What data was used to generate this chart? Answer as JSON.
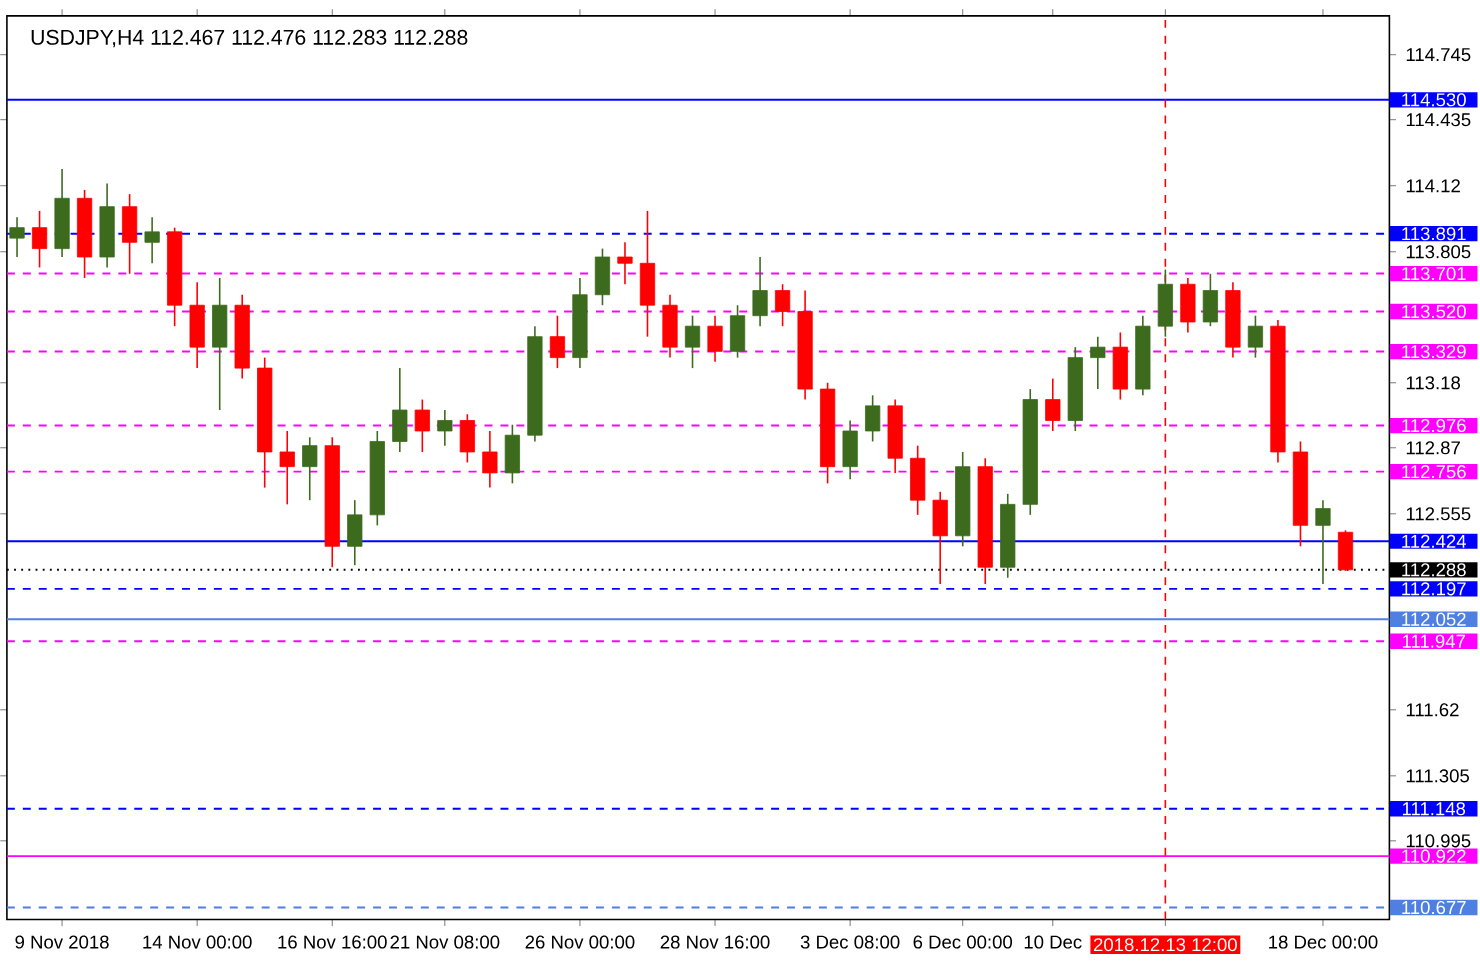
{
  "chart_data": {
    "type": "candlestick",
    "title": "USDJPY,H4  112.467 112.476 112.283 112.288",
    "categories": [
      null,
      null,
      "9 Nov 2018",
      null,
      null,
      null,
      null,
      null,
      "14 Nov 00:00",
      null,
      null,
      null,
      null,
      null,
      "16 Nov 16:00",
      null,
      null,
      null,
      null,
      "21 Nov 08:00",
      null,
      null,
      null,
      null,
      null,
      "26 Nov 00:00",
      null,
      null,
      null,
      null,
      null,
      "28 Nov 16:00",
      null,
      null,
      null,
      null,
      null,
      "3 Dec 08:00",
      null,
      null,
      null,
      null,
      "6 Dec 00:00",
      null,
      null,
      null,
      "10 Dec",
      null,
      null,
      null,
      null,
      "2018.12.13 12:00",
      null,
      null,
      null,
      null,
      null,
      null,
      "18 Dec 00:00",
      null
    ],
    "ohlc": [
      [
        113.87,
        113.97,
        113.78,
        113.92
      ],
      [
        113.92,
        114.0,
        113.73,
        113.82
      ],
      [
        113.82,
        114.2,
        113.78,
        114.06
      ],
      [
        114.06,
        114.1,
        113.68,
        113.78
      ],
      [
        113.78,
        114.13,
        113.73,
        114.02
      ],
      [
        114.02,
        114.08,
        113.7,
        113.85
      ],
      [
        113.85,
        113.97,
        113.75,
        113.9
      ],
      [
        113.9,
        113.92,
        113.45,
        113.55
      ],
      [
        113.55,
        113.66,
        113.25,
        113.35
      ],
      [
        113.35,
        113.68,
        113.05,
        113.55
      ],
      [
        113.55,
        113.6,
        113.2,
        113.25
      ],
      [
        113.25,
        113.3,
        112.68,
        112.85
      ],
      [
        112.85,
        112.95,
        112.6,
        112.78
      ],
      [
        112.78,
        112.92,
        112.62,
        112.88
      ],
      [
        112.88,
        112.92,
        112.3,
        112.4
      ],
      [
        112.4,
        112.62,
        112.31,
        112.55
      ],
      [
        112.55,
        112.95,
        112.5,
        112.9
      ],
      [
        112.9,
        113.25,
        112.85,
        113.05
      ],
      [
        113.05,
        113.1,
        112.85,
        112.95
      ],
      [
        112.95,
        113.05,
        112.88,
        113.0
      ],
      [
        113.0,
        113.03,
        112.8,
        112.85
      ],
      [
        112.85,
        112.95,
        112.68,
        112.75
      ],
      [
        112.75,
        112.98,
        112.7,
        112.93
      ],
      [
        112.93,
        113.45,
        112.9,
        113.4
      ],
      [
        113.4,
        113.5,
        113.25,
        113.3
      ],
      [
        113.3,
        113.68,
        113.25,
        113.6
      ],
      [
        113.6,
        113.82,
        113.55,
        113.78
      ],
      [
        113.78,
        113.85,
        113.65,
        113.75
      ],
      [
        113.75,
        114.0,
        113.4,
        113.55
      ],
      [
        113.55,
        113.6,
        113.3,
        113.35
      ],
      [
        113.35,
        113.5,
        113.25,
        113.45
      ],
      [
        113.45,
        113.5,
        113.28,
        113.33
      ],
      [
        113.33,
        113.55,
        113.3,
        113.5
      ],
      [
        113.5,
        113.78,
        113.45,
        113.62
      ],
      [
        113.62,
        113.65,
        113.45,
        113.52
      ],
      [
        113.52,
        113.62,
        113.1,
        113.15
      ],
      [
        113.15,
        113.18,
        112.7,
        112.78
      ],
      [
        112.78,
        113.0,
        112.72,
        112.95
      ],
      [
        112.95,
        113.12,
        112.9,
        113.07
      ],
      [
        113.07,
        113.1,
        112.75,
        112.82
      ],
      [
        112.82,
        112.88,
        112.55,
        112.62
      ],
      [
        112.62,
        112.66,
        112.22,
        112.45
      ],
      [
        112.45,
        112.85,
        112.4,
        112.78
      ],
      [
        112.78,
        112.82,
        112.22,
        112.3
      ],
      [
        112.3,
        112.65,
        112.25,
        112.6
      ],
      [
        112.6,
        113.15,
        112.55,
        113.1
      ],
      [
        113.1,
        113.2,
        112.95,
        113.0
      ],
      [
        113.0,
        113.35,
        112.95,
        113.3
      ],
      [
        113.3,
        113.4,
        113.15,
        113.35
      ],
      [
        113.35,
        113.42,
        113.1,
        113.15
      ],
      [
        113.15,
        113.5,
        113.12,
        113.45
      ],
      [
        113.45,
        113.72,
        113.4,
        113.65
      ],
      [
        113.65,
        113.68,
        113.42,
        113.47
      ],
      [
        113.47,
        113.7,
        113.45,
        113.62
      ],
      [
        113.62,
        113.66,
        113.3,
        113.35
      ],
      [
        113.35,
        113.5,
        113.3,
        113.45
      ],
      [
        113.45,
        113.48,
        112.8,
        112.85
      ],
      [
        112.85,
        112.9,
        112.4,
        112.5
      ],
      [
        112.5,
        112.62,
        112.22,
        112.58
      ],
      [
        112.467,
        112.476,
        112.283,
        112.288
      ]
    ],
    "colors": [
      "#3d6b1e",
      "#ff0000",
      "#3d6b1e",
      "#ff0000",
      "#3d6b1e",
      "#ff0000",
      "#3d6b1e",
      "#ff0000",
      "#ff0000",
      "#3d6b1e",
      "#ff0000",
      "#ff0000",
      "#ff0000",
      "#3d6b1e",
      "#ff0000",
      "#3d6b1e",
      "#3d6b1e",
      "#3d6b1e",
      "#ff0000",
      "#3d6b1e",
      "#ff0000",
      "#ff0000",
      "#3d6b1e",
      "#3d6b1e",
      "#ff0000",
      "#3d6b1e",
      "#3d6b1e",
      "#ff0000",
      "#ff0000",
      "#ff0000",
      "#3d6b1e",
      "#ff0000",
      "#3d6b1e",
      "#3d6b1e",
      "#ff0000",
      "#ff0000",
      "#ff0000",
      "#3d6b1e",
      "#3d6b1e",
      "#ff0000",
      "#ff0000",
      "#ff0000",
      "#3d6b1e",
      "#ff0000",
      "#3d6b1e",
      "#3d6b1e",
      "#ff0000",
      "#3d6b1e",
      "#3d6b1e",
      "#ff0000",
      "#3d6b1e",
      "#3d6b1e",
      "#ff0000",
      "#3d6b1e",
      "#ff0000",
      "#3d6b1e",
      "#ff0000",
      "#ff0000",
      "#3d6b1e",
      "#ff0000"
    ],
    "ylim": [
      110.62,
      114.93
    ],
    "yticks": [
      114.745,
      114.435,
      114.12,
      113.805,
      113.18,
      112.87,
      112.555,
      111.62,
      111.305,
      110.995
    ],
    "ref_lines": [
      {
        "axis": "y",
        "value": 114.53,
        "label": "114.530",
        "color": "#0000ff",
        "line_style": "solid"
      },
      {
        "axis": "y",
        "value": 113.891,
        "label": "113.891",
        "color": "#0000ff",
        "line_style": "dashed"
      },
      {
        "axis": "y",
        "value": 113.701,
        "label": "113.701",
        "color": "#ff00ff",
        "line_style": "dashed"
      },
      {
        "axis": "y",
        "value": 113.52,
        "label": "113.520",
        "color": "#ff00ff",
        "line_style": "dashed"
      },
      {
        "axis": "y",
        "value": 113.329,
        "label": "113.329",
        "color": "#ff00ff",
        "line_style": "dashed"
      },
      {
        "axis": "y",
        "value": 112.976,
        "label": "112.976",
        "color": "#ff00ff",
        "line_style": "dashed"
      },
      {
        "axis": "y",
        "value": 112.756,
        "label": "112.756",
        "color": "#ff00ff",
        "line_style": "dashed"
      },
      {
        "axis": "y",
        "value": 112.424,
        "label": "112.424",
        "color": "#0000ff",
        "line_style": "solid"
      },
      {
        "axis": "y",
        "value": 112.288,
        "label": "112.288",
        "color": "#000000",
        "line_style": "dotted"
      },
      {
        "axis": "y",
        "value": 112.197,
        "label": "112.197",
        "color": "#0000ff",
        "line_style": "dashed"
      },
      {
        "axis": "y",
        "value": 112.052,
        "label": "112.052",
        "color": "#4f7fe0",
        "line_style": "solid"
      },
      {
        "axis": "y",
        "value": 111.947,
        "label": "111.947",
        "color": "#ff00ff",
        "line_style": "dashed"
      },
      {
        "axis": "y",
        "value": 111.148,
        "label": "111.148",
        "color": "#0000ff",
        "line_style": "dashed"
      },
      {
        "axis": "y",
        "value": 110.922,
        "label": "110.922",
        "color": "#ff00ff",
        "line_style": "solid"
      },
      {
        "axis": "y",
        "value": 110.677,
        "label": "110.677",
        "color": "#4f7fe0",
        "line_style": "dashed"
      },
      {
        "axis": "x",
        "value": "2018.12.13 12:00",
        "color": "#ff0000",
        "line_style": "dashed"
      }
    ]
  }
}
